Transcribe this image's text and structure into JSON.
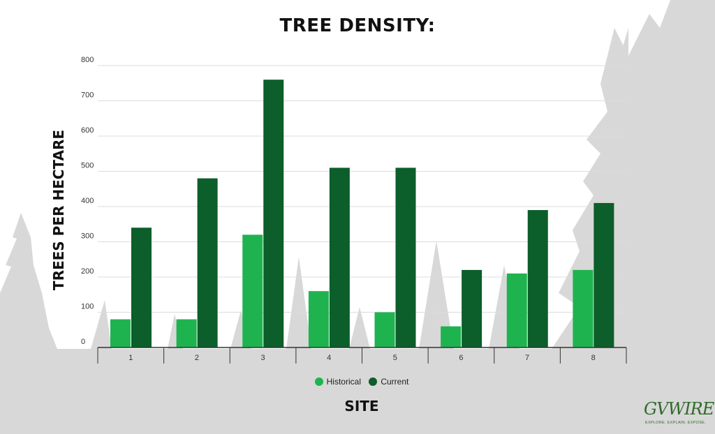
{
  "colors": {
    "historical": "#1fb350",
    "current": "#0c5e2a",
    "grid": "#dcdcdc",
    "axis": "#333333",
    "trees": "#d8d8d8"
  },
  "legend": {
    "historical": "Historical",
    "current": "Current"
  },
  "logo": {
    "word": "GVWIRE",
    "tagline": "EXPLORE. EXPLAIN. EXPOSE."
  },
  "chart_data": {
    "type": "bar",
    "title": "TREE DENSITY:",
    "xlabel": "SITE",
    "ylabel": "TREES PER HECTARE",
    "categories": [
      "1",
      "2",
      "3",
      "4",
      "5",
      "6",
      "7",
      "8"
    ],
    "series": [
      {
        "name": "Historical",
        "values": [
          80,
          80,
          320,
          160,
          100,
          60,
          210,
          220
        ]
      },
      {
        "name": "Current",
        "values": [
          340,
          480,
          760,
          510,
          510,
          220,
          390,
          410
        ]
      }
    ],
    "ylim": [
      0,
      800
    ],
    "yticks": [
      0,
      100,
      200,
      300,
      400,
      500,
      600,
      700,
      800
    ],
    "grid": true,
    "legend_position": "bottom"
  }
}
